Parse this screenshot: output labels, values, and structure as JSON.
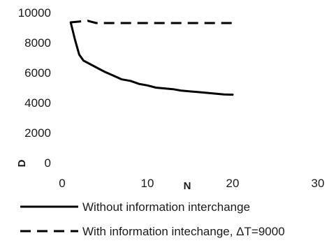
{
  "chart_data": {
    "type": "line",
    "title": "",
    "xlabel": "N",
    "ylabel": "D",
    "xlim": [
      0,
      30
    ],
    "ylim": [
      0,
      10000
    ],
    "x_ticks": [
      "0",
      "10",
      "20",
      "30"
    ],
    "y_ticks": [
      "0",
      "2000",
      "4000",
      "6000",
      "8000",
      "10000"
    ],
    "grid": false,
    "legend_position": "bottom",
    "series": [
      {
        "name": "Without information interchange",
        "style": "solid",
        "color": "#000000",
        "x": [
          1,
          1.5,
          2,
          2.5,
          3,
          4,
          5,
          6,
          7,
          8,
          9,
          10,
          11,
          12,
          13,
          14,
          15,
          16,
          17,
          18,
          19,
          20
        ],
        "y": [
          9350,
          8200,
          7200,
          6800,
          6650,
          6350,
          6050,
          5800,
          5550,
          5450,
          5250,
          5150,
          5000,
          4950,
          4900,
          4800,
          4750,
          4700,
          4650,
          4600,
          4550,
          4530
        ]
      },
      {
        "name": "With information intechange, ΔT=9000",
        "style": "dashed",
        "color": "#000000",
        "x": [
          1,
          3,
          4,
          20
        ],
        "y": [
          9350,
          9450,
          9300,
          9300
        ]
      }
    ]
  }
}
